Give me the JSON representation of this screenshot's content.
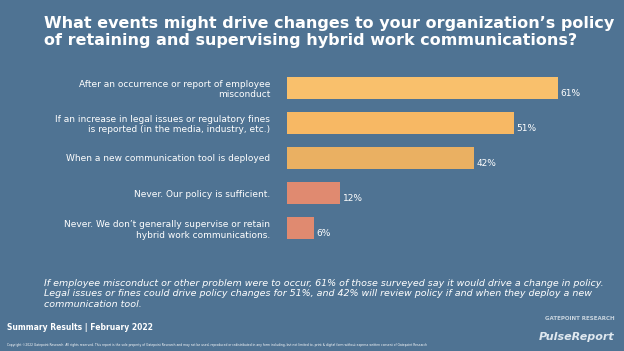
{
  "chart_data": {
    "type": "bar",
    "orientation": "horizontal",
    "title": "What events might drive changes to your organization’s policy of retaining and supervising hybrid work communications?",
    "categories": [
      "After an occurrence or report of employee misconduct",
      "If an increase in legal issues or regulatory fines is reported (in the media, industry, etc.)",
      "When a new communication tool is deployed",
      "Never. Our policy is sufficient.",
      "Never. We don’t generally supervise or retain hybrid work communications."
    ],
    "values": [
      61,
      51,
      42,
      12,
      6
    ],
    "value_labels": [
      "61%",
      "51%",
      "42%",
      "12%",
      "6%"
    ],
    "colors": [
      "#f9c06c",
      "#f7b864",
      "#eab062",
      "#e08a70",
      "#e08a70"
    ],
    "xlim": [
      0,
      66
    ],
    "data_labels": true,
    "tick_labels": "y",
    "grid": false,
    "caption": "If employee misconduct or other problem were to occur, 61% of those surveyed say it would drive a change in policy. Legal issues or fines could drive policy changes for 51%, and 42% will review policy if and when they deploy a new communication tool.",
    "footer": "Summary Results | February 2022",
    "copyright": "Copyright ©2022 Gatepoint Research. All rights reserved. This report is the sole property of Gatepoint Research and may not be used, reproduced or redistributed in any form including, but not limited to, print & digital form without express written consent of Gatepoint Research",
    "logo": [
      "GATEPOINT RESEARCH",
      "PulseReport"
    ]
  }
}
